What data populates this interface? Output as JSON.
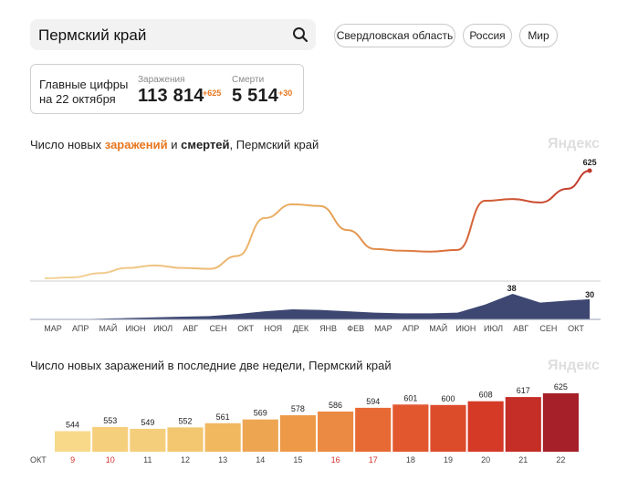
{
  "search": {
    "value": "Пермский край"
  },
  "regions": [
    "Свердловская область",
    "Россия",
    "Мир"
  ],
  "summary": {
    "label_line1": "Главные цифры",
    "label_line2": "на 22 октября",
    "infections": {
      "caption": "Заражения",
      "value": "113 814",
      "delta": "+625"
    },
    "deaths": {
      "caption": "Смерти",
      "value": "5 514",
      "delta": "+30"
    }
  },
  "chart1": {
    "title_part1": "Число новых ",
    "title_hl": "заражений",
    "title_part2": " и ",
    "title_bold": "смертей",
    "title_part3": ", Пермский край",
    "brand": "Яндекс"
  },
  "chart2": {
    "title": "Число новых заражений в последние две недели, Пермский край",
    "brand": "Яндекс"
  },
  "colors": {
    "accent": "#e8761e",
    "deaths_area": "#3d4771",
    "line_start": "#e8b56b",
    "line_end": "#c0392b"
  },
  "chart_data": [
    {
      "type": "line",
      "title": "Число новых заражений и смертей, Пермский край",
      "x_months": [
        "МАР",
        "АПР",
        "МАЙ",
        "ИЮН",
        "ИЮЛ",
        "АВГ",
        "СЕН",
        "ОКТ",
        "НОЯ",
        "ДЕК",
        "ЯНВ",
        "ФЕВ",
        "МАР",
        "АПР",
        "МАЙ",
        "ИЮН",
        "ИЮЛ",
        "АВГ",
        "СЕН",
        "ОКТ"
      ],
      "series": [
        {
          "name": "заражений",
          "x": [
            "2020-03",
            "2020-04",
            "2020-05",
            "2020-06",
            "2020-07",
            "2020-08",
            "2020-09",
            "2020-10",
            "2020-11",
            "2020-12",
            "2021-01",
            "2021-02",
            "2021-03",
            "2021-04",
            "2021-05",
            "2021-06",
            "2021-07",
            "2021-08",
            "2021-09",
            "2021-10",
            "2021-10-22"
          ],
          "values": [
            0,
            5,
            30,
            60,
            75,
            60,
            55,
            130,
            350,
            430,
            420,
            280,
            170,
            160,
            155,
            165,
            450,
            460,
            440,
            520,
            625
          ],
          "end_label": "625"
        },
        {
          "name": "смертей",
          "x": [
            "2020-03",
            "2020-04",
            "2020-05",
            "2020-06",
            "2020-07",
            "2020-08",
            "2020-09",
            "2020-10",
            "2020-11",
            "2020-12",
            "2021-01",
            "2021-02",
            "2021-03",
            "2021-04",
            "2021-05",
            "2021-06",
            "2021-07",
            "2021-08",
            "2021-09",
            "2021-10",
            "2021-10-22"
          ],
          "values": [
            0,
            0,
            1,
            2,
            3,
            4,
            5,
            8,
            12,
            15,
            14,
            12,
            10,
            9,
            9,
            10,
            22,
            38,
            25,
            28,
            30
          ],
          "peak_label": "38",
          "end_label": "30"
        }
      ]
    },
    {
      "type": "bar",
      "title": "Число новых заражений в последние две недели, Пермский край",
      "month_label": "ОКТ",
      "categories": [
        "9",
        "10",
        "11",
        "12",
        "13",
        "14",
        "15",
        "16",
        "17",
        "18",
        "19",
        "20",
        "21",
        "22"
      ],
      "weekend_days": [
        "9",
        "10",
        "16",
        "17"
      ],
      "values": [
        544,
        553,
        549,
        552,
        561,
        569,
        578,
        586,
        594,
        601,
        600,
        608,
        617,
        625
      ],
      "colors": [
        "#f8d98a",
        "#f6cf7c",
        "#f5ce7c",
        "#f3c670",
        "#f1b85f",
        "#eea552",
        "#ed9948",
        "#eb8a42",
        "#e76a34",
        "#e2572d",
        "#dc4c2b",
        "#d53a27",
        "#c52d27",
        "#a52028"
      ]
    }
  ]
}
